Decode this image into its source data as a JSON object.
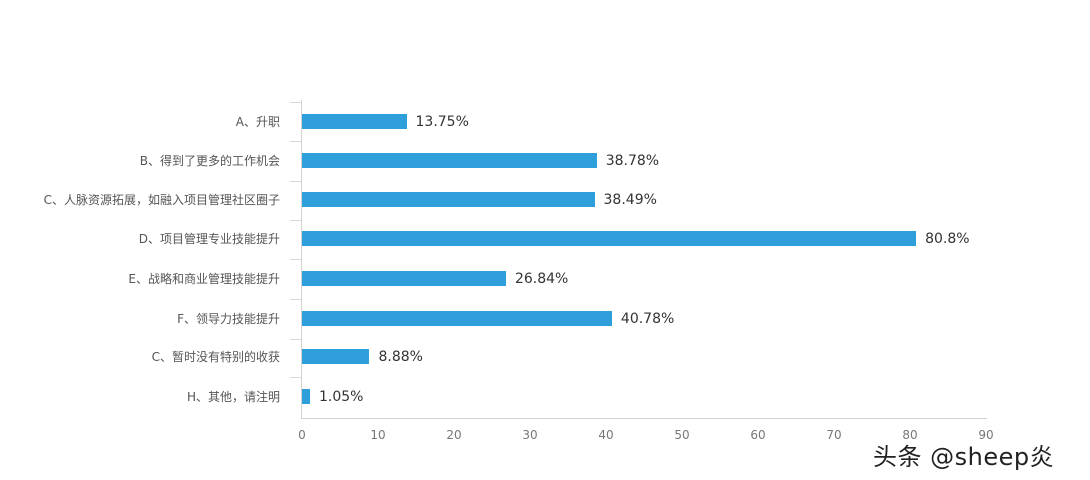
{
  "chart_data": {
    "type": "bar",
    "orientation": "horizontal",
    "title": "",
    "xlabel": "",
    "ylabel": "",
    "xlim": [
      0,
      90
    ],
    "grid": false,
    "legend": null,
    "bar_color": "#2f9fdc",
    "categories": [
      "A、升职",
      "B、得到了更多的工作机会",
      "C、人脉资源拓展，如融入项目管理社区圈子",
      "D、项目管理专业技能提升",
      "E、战略和商业管理技能提升",
      "F、领导力技能提升",
      "C、暂时没有特别的收获",
      "H、其他，请注明"
    ],
    "values": [
      13.75,
      38.78,
      38.49,
      80.8,
      26.84,
      40.78,
      8.88,
      1.05
    ],
    "value_labels": [
      "13.75%",
      "38.78%",
      "38.49%",
      "80.8%",
      "26.84%",
      "40.78%",
      "8.88%",
      "1.05%"
    ],
    "x_ticks": [
      "0",
      "10",
      "20",
      "30",
      "40",
      "50",
      "60",
      "70",
      "80",
      "90"
    ]
  },
  "watermark": "头条 @sheep炎"
}
